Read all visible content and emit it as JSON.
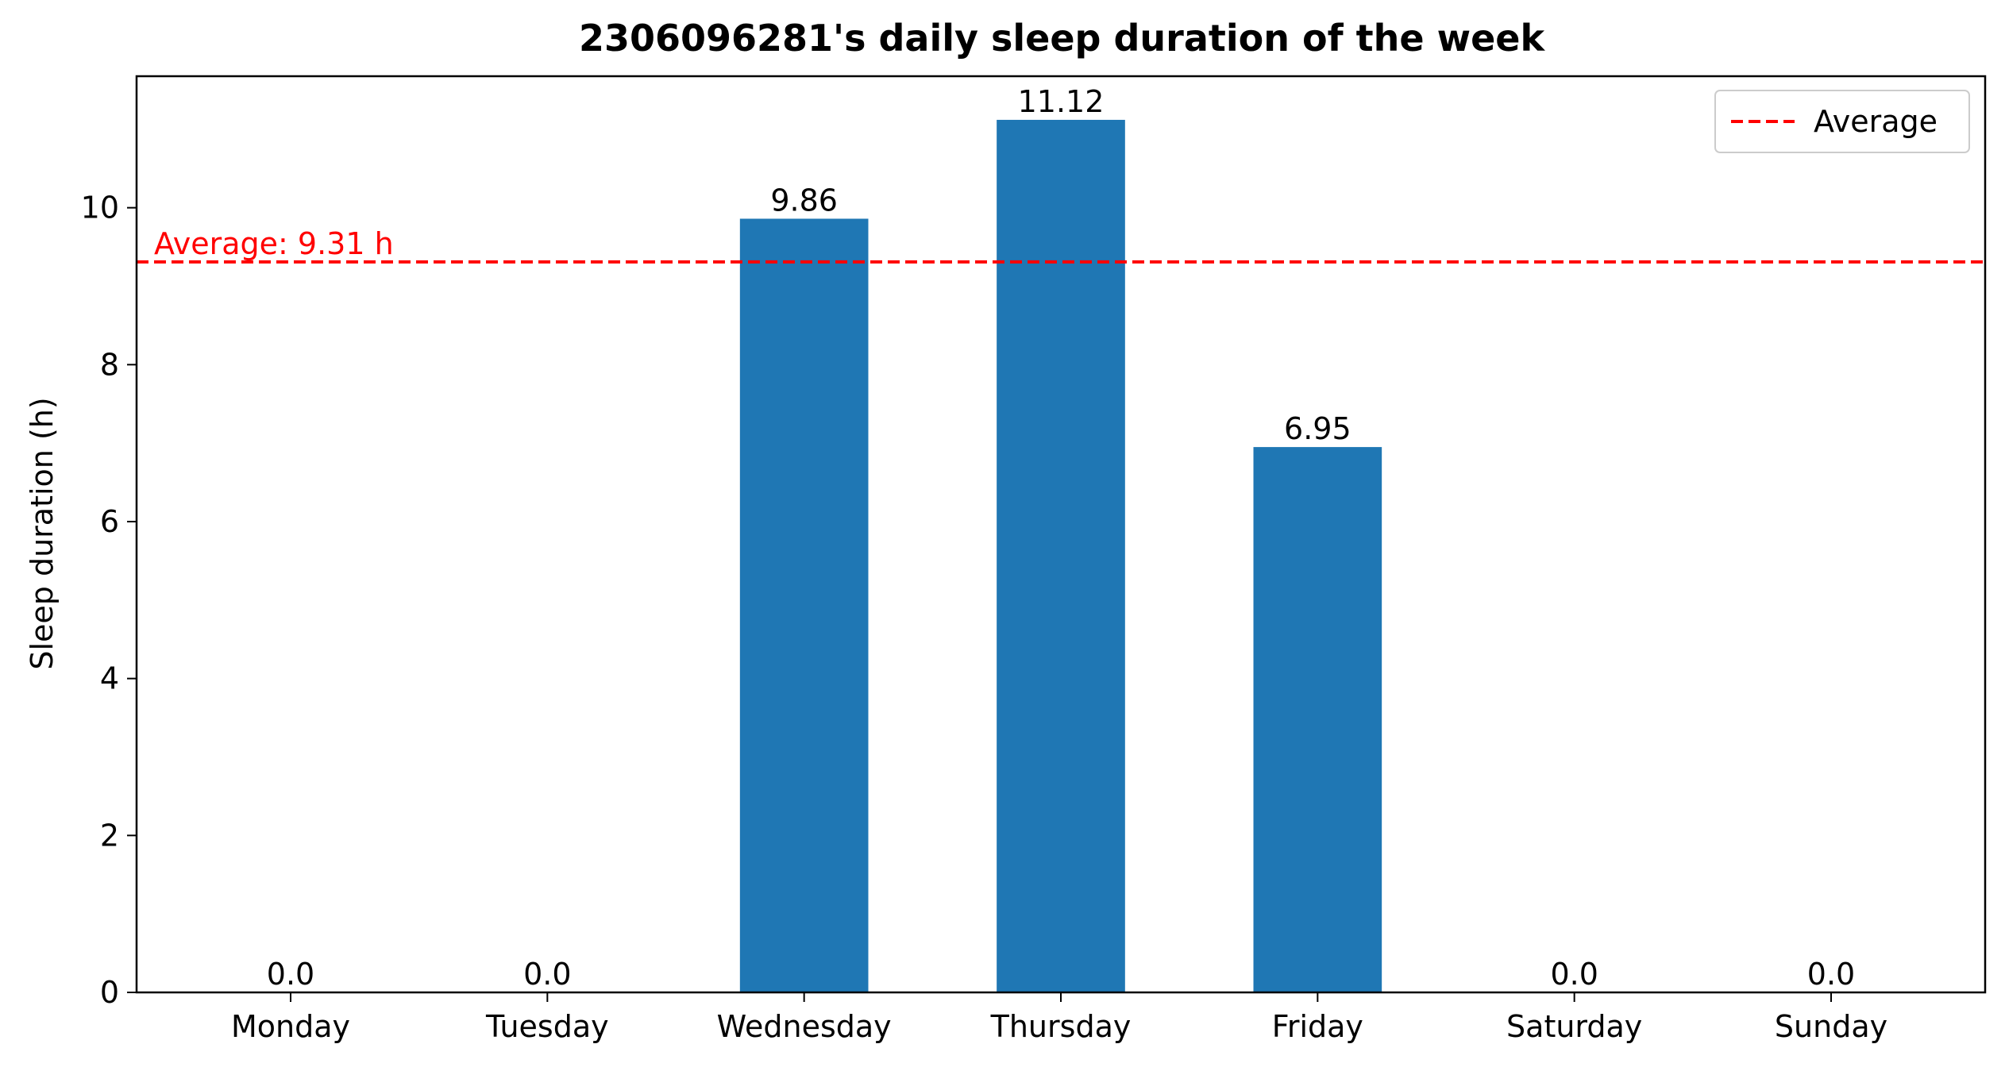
{
  "chart_data": {
    "type": "bar",
    "title": "2306096281's daily sleep duration of the week",
    "xlabel": "",
    "ylabel": "Sleep duration (h)",
    "categories": [
      "Monday",
      "Tuesday",
      "Wednesday",
      "Thursday",
      "Friday",
      "Saturday",
      "Sunday"
    ],
    "values": [
      0.0,
      0.0,
      9.86,
      11.12,
      6.95,
      0.0,
      0.0
    ],
    "value_labels": [
      "0.0",
      "0.0",
      "9.86",
      "11.12",
      "6.95",
      "0.0",
      "0.0"
    ],
    "ylim": [
      0,
      11.676
    ],
    "yticks": [
      0,
      2,
      4,
      6,
      8,
      10
    ],
    "bar_color": "#1f77b4",
    "average": {
      "value": 9.31,
      "label": "Average: 9.31 h",
      "color": "#ff0000",
      "style": "dashed"
    },
    "legend": {
      "entries": [
        {
          "name": "Average",
          "color": "#ff0000",
          "style": "dashed"
        }
      ],
      "placement": "top-right"
    },
    "grid": false
  }
}
